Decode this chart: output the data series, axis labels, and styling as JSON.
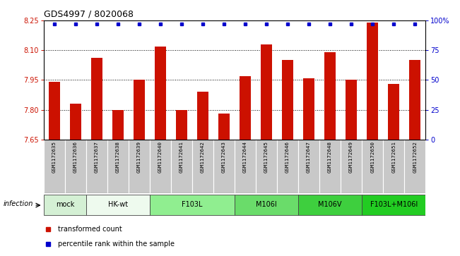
{
  "title": "GDS4997 / 8020068",
  "samples": [
    "GSM1172635",
    "GSM1172636",
    "GSM1172637",
    "GSM1172638",
    "GSM1172639",
    "GSM1172640",
    "GSM1172641",
    "GSM1172642",
    "GSM1172643",
    "GSM1172644",
    "GSM1172645",
    "GSM1172646",
    "GSM1172647",
    "GSM1172648",
    "GSM1172649",
    "GSM1172650",
    "GSM1172651",
    "GSM1172652"
  ],
  "transformed_counts": [
    7.94,
    7.83,
    8.06,
    7.8,
    7.95,
    8.12,
    7.8,
    7.89,
    7.78,
    7.97,
    8.13,
    8.05,
    7.96,
    8.09,
    7.95,
    8.24,
    7.93,
    8.05
  ],
  "percentile_ranks": [
    97,
    97,
    97,
    97,
    97,
    97,
    97,
    97,
    97,
    97,
    97,
    97,
    97,
    97,
    97,
    97,
    97,
    97
  ],
  "groups": [
    {
      "label": "mock",
      "start": 0,
      "end": 1,
      "color": "#d4f0d4"
    },
    {
      "label": "HK-wt",
      "start": 2,
      "end": 4,
      "color": "#eefaee"
    },
    {
      "label": "F103L",
      "start": 5,
      "end": 8,
      "color": "#90ee90"
    },
    {
      "label": "M106I",
      "start": 9,
      "end": 11,
      "color": "#6adc6a"
    },
    {
      "label": "M106V",
      "start": 12,
      "end": 14,
      "color": "#3ecf3e"
    },
    {
      "label": "F103L+M106I",
      "start": 15,
      "end": 17,
      "color": "#22cc22"
    }
  ],
  "ylim_left": [
    7.65,
    8.25
  ],
  "yticks_left": [
    7.65,
    7.8,
    7.95,
    8.1,
    8.25
  ],
  "ylim_right": [
    0,
    100
  ],
  "yticks_right": [
    0,
    25,
    50,
    75,
    100
  ],
  "bar_color": "#cc1100",
  "dot_color": "#0000cc",
  "bar_width": 0.55,
  "sample_box_color": "#c8c8c8",
  "infection_label": "infection",
  "legend_items": [
    {
      "label": "transformed count",
      "color": "#cc1100"
    },
    {
      "label": "percentile rank within the sample",
      "color": "#0000cc"
    }
  ]
}
